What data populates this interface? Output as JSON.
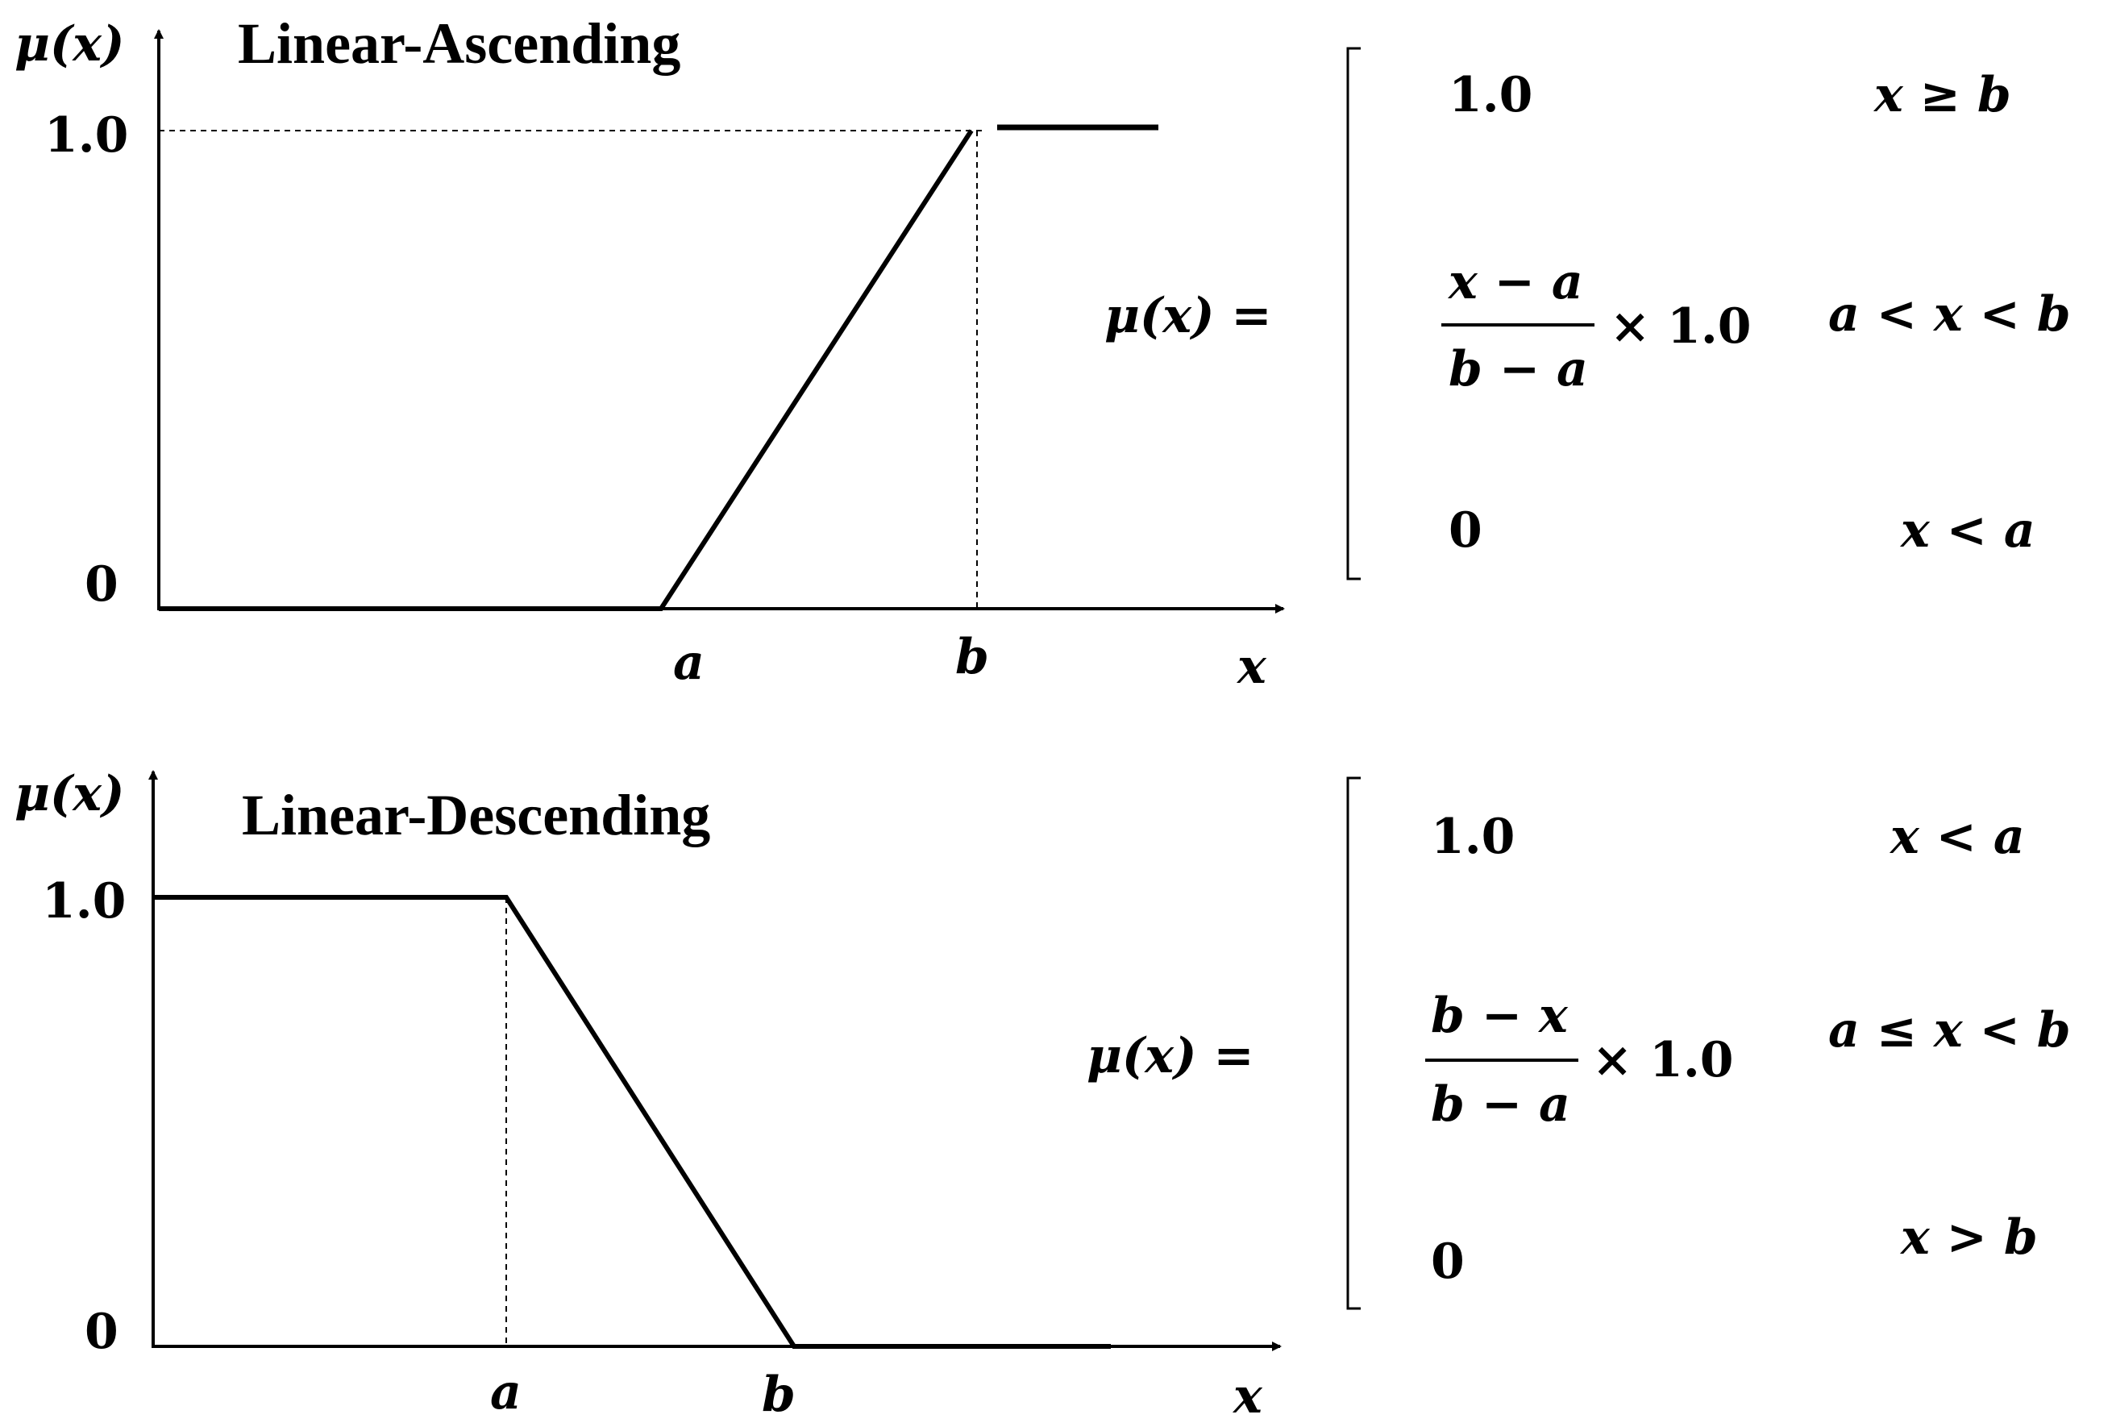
{
  "panels": [
    {
      "title": "Linear-Ascending",
      "y_axis_label": "μ(x)",
      "x_axis_label": "x",
      "y_ticks": [
        "1.0",
        "0"
      ],
      "x_markers": [
        "a",
        "b"
      ],
      "equation_lhs": "μ(x) =",
      "cases": [
        {
          "value": "1.0",
          "condition": "x ≥ b"
        },
        {
          "numerator": "x − a",
          "denominator": "b − a",
          "multiplier": "× 1.0",
          "condition": "a < x < b"
        },
        {
          "value": "0",
          "condition": "x < a"
        }
      ]
    },
    {
      "title": "Linear-Descending",
      "y_axis_label": "μ(x)",
      "x_axis_label": "x",
      "y_ticks": [
        "1.0",
        "0"
      ],
      "x_markers": [
        "a",
        "b"
      ],
      "equation_lhs": "μ(x) =",
      "cases": [
        {
          "value": "1.0",
          "condition": "x < a"
        },
        {
          "numerator": "b − x",
          "denominator": "b − a",
          "multiplier": "× 1.0",
          "condition": "a ≤ x < b"
        },
        {
          "value": "0",
          "condition": "x > b"
        }
      ]
    }
  ]
}
